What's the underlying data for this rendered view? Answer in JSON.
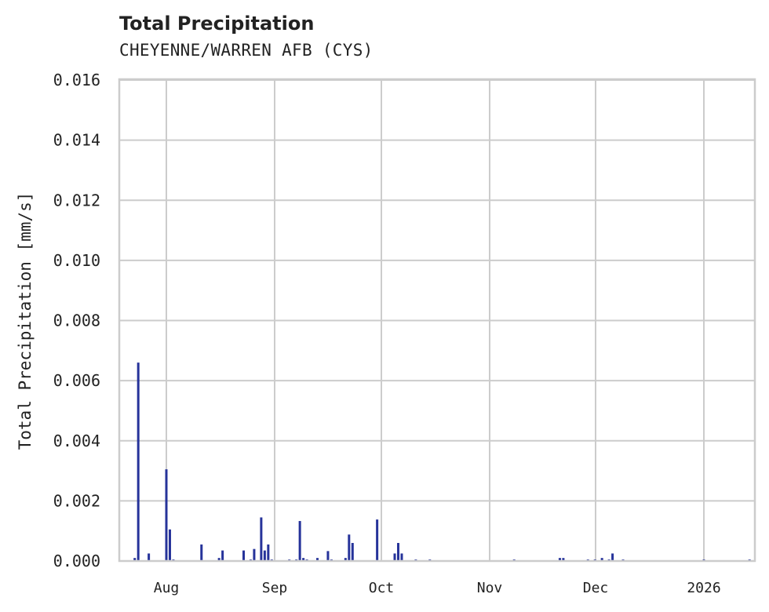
{
  "chart_data": {
    "type": "bar",
    "title": "Total Precipitation",
    "subtitle": "CHEYENNE/WARREN AFB (CYS)",
    "xlabel": "",
    "ylabel": "Total Precipitation [mm/s]",
    "ylim": [
      0,
      0.016
    ],
    "yticks": [
      "0.000",
      "0.002",
      "0.004",
      "0.006",
      "0.008",
      "0.010",
      "0.012",
      "0.014",
      "0.016"
    ],
    "xticks": [
      "Aug",
      "Sep",
      "Oct",
      "Nov",
      "Dec",
      "2026"
    ],
    "grid": true,
    "color": "#26339a",
    "x": [
      "Jul 23",
      "Jul 24",
      "Jul 27",
      "Aug 1",
      "Aug 2",
      "Aug 3",
      "Aug 11",
      "Aug 16",
      "Aug 17",
      "Aug 23",
      "Aug 25",
      "Aug 26",
      "Aug 28",
      "Aug 29",
      "Aug 30",
      "Aug 31",
      "Sep 5",
      "Sep 7",
      "Sep 8",
      "Sep 9",
      "Sep 10",
      "Sep 13",
      "Sep 16",
      "Sep 17",
      "Sep 21",
      "Sep 22",
      "Sep 23",
      "Sep 30",
      "Oct 5",
      "Oct 6",
      "Oct 7",
      "Oct 11",
      "Oct 15",
      "Nov 8",
      "Nov 21",
      "Nov 22",
      "Nov 29",
      "Dec 1",
      "Dec 3",
      "Dec 5",
      "Dec 6",
      "Dec 9",
      "Jan 1",
      "Jan 14"
    ],
    "values": [
      0.0001,
      0.0066,
      0.00025,
      0.00305,
      0.00105,
      5e-05,
      0.00055,
      0.0001,
      0.00035,
      0.00035,
      5e-05,
      0.0004,
      0.00145,
      0.00035,
      0.00055,
      5e-05,
      5e-05,
      5e-05,
      0.00133,
      0.0001,
      5e-05,
      0.0001,
      0.00033,
      5e-05,
      0.0001,
      0.00088,
      0.0006,
      0.00138,
      0.00025,
      0.0006,
      0.00025,
      5e-05,
      5e-05,
      5e-05,
      0.0001,
      0.0001,
      5e-05,
      5e-05,
      0.0001,
      5e-05,
      0.00025,
      5e-05,
      5e-05,
      5e-05
    ]
  }
}
